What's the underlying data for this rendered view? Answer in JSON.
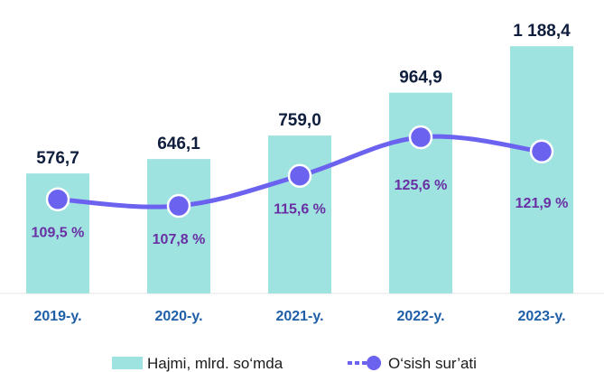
{
  "chart_data": {
    "type": "bar",
    "categories": [
      "2019-y.",
      "2020-y.",
      "2021-y.",
      "2022-y.",
      "2023-y."
    ],
    "series": [
      {
        "name": "Hajmi, mlrd. so‘mda",
        "kind": "bar",
        "values": [
          576.7,
          646.1,
          759.0,
          964.9,
          1188.4
        ],
        "labels": [
          "576,7",
          "646,1",
          "759,0",
          "964,9",
          "1 188,4"
        ],
        "color": "#9ee3e0"
      },
      {
        "name": "O‘sish sur’ati",
        "kind": "line",
        "values": [
          109.5,
          107.8,
          115.6,
          125.6,
          121.9
        ],
        "labels": [
          "109,5 %",
          "107,8 %",
          "115,6 %",
          "125,6 %",
          "121,9 %"
        ],
        "color": "#6b63f0"
      }
    ],
    "ylim": [
      0,
      1250
    ],
    "line_ylim": [
      100,
      130
    ],
    "legend_position": "bottom",
    "grid": false
  }
}
